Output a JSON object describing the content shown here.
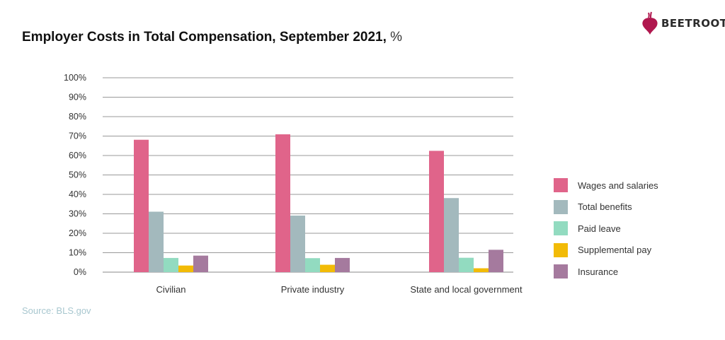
{
  "header": {
    "title": "Employer Costs in Total Compensation, September 2021,",
    "title_unit": "%",
    "brand": "BEETROOT"
  },
  "footer": {
    "source": "Source: BLS.gov"
  },
  "chart_data": {
    "type": "bar",
    "title": "Employer Costs in Total Compensation, September 2021, %",
    "categories": [
      "Civilian",
      "Private industry",
      "State and local government"
    ],
    "series": [
      {
        "name": "Wages and salaries",
        "color": "#e0648a",
        "values": [
          68.1,
          70.9,
          62.4
        ]
      },
      {
        "name": "Total benefits",
        "color": "#a3b9bd",
        "values": [
          31.1,
          29.1,
          38.1
        ]
      },
      {
        "name": "Paid leave",
        "color": "#92dbc0",
        "values": [
          7.3,
          7.2,
          7.4
        ]
      },
      {
        "name": "Supplemental pay",
        "color": "#f2bb07",
        "values": [
          3.4,
          3.8,
          2.0
        ]
      },
      {
        "name": "Insurance",
        "color": "#a57a9e",
        "values": [
          8.5,
          7.3,
          11.5
        ]
      }
    ],
    "yticks": [
      "0%",
      "10%",
      "20%",
      "30%",
      "40%",
      "50%",
      "60%",
      "70%",
      "80%",
      "90%",
      "100%"
    ],
    "ylim": [
      0,
      100
    ],
    "grid": true,
    "legend_position": "right"
  }
}
